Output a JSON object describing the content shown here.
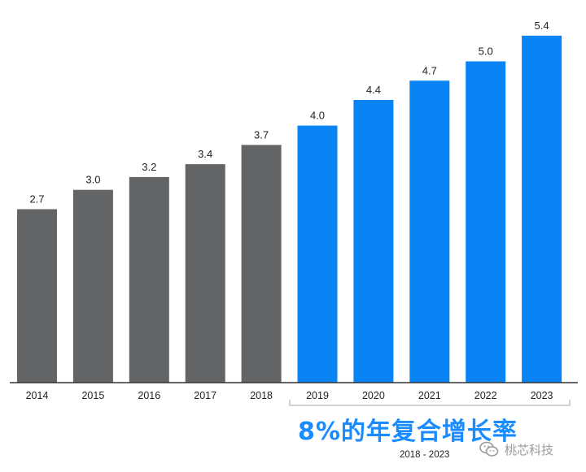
{
  "chart_data": {
    "type": "bar",
    "categories": [
      "2014",
      "2015",
      "2016",
      "2017",
      "2018",
      "2019",
      "2020",
      "2021",
      "2022",
      "2023"
    ],
    "values": [
      2.7,
      3.0,
      3.2,
      3.4,
      3.7,
      4.0,
      4.4,
      4.7,
      5.0,
      5.4
    ],
    "value_labels": [
      "2.7",
      "3.0",
      "3.2",
      "3.4",
      "3.7",
      "4.0",
      "4.4",
      "4.7",
      "5.0",
      "5.4"
    ],
    "bar_colors": [
      "#636466",
      "#636466",
      "#636466",
      "#636466",
      "#636466",
      "#0a84f5",
      "#0a84f5",
      "#0a84f5",
      "#0a84f5",
      "#0a84f5"
    ],
    "ylim": [
      0,
      5.5
    ],
    "grid": false,
    "legend": "none",
    "annotation": {
      "text": "8%的年复合增长率",
      "range": "2018 - 2023",
      "color": "#1a8cff"
    }
  },
  "watermark": {
    "text": "桃芯科技",
    "icon": "wechat-icon"
  }
}
